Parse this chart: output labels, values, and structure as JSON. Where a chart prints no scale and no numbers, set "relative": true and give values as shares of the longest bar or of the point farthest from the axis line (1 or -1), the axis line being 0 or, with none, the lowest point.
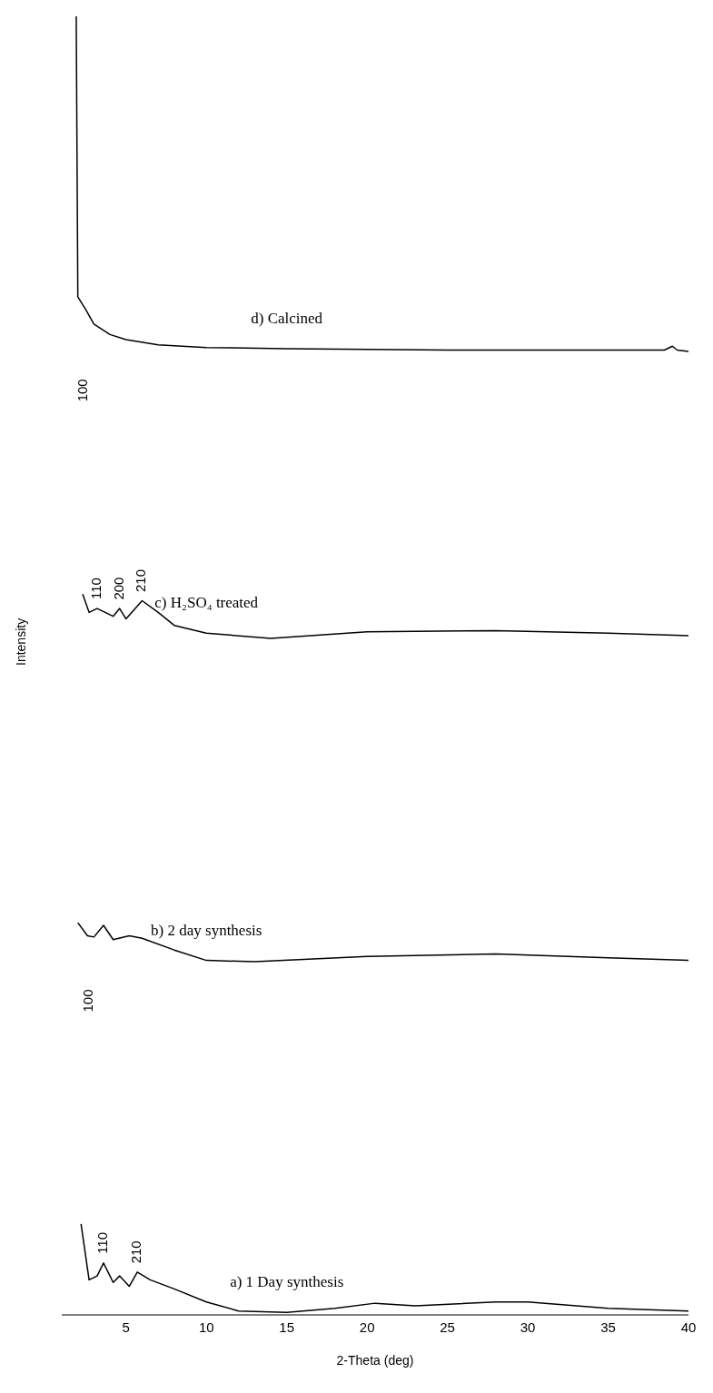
{
  "chart_data": {
    "type": "line",
    "relative": true,
    "xlabel": "2-Theta (deg)",
    "ylabel": "Intensity",
    "xlim": [
      1,
      40
    ],
    "xticks": [
      5,
      10,
      15,
      20,
      25,
      30,
      35,
      40
    ],
    "tick_labels": "x",
    "marker": "none",
    "line_style": "solid",
    "series": [
      {
        "name": "a) 1 Day synthesis",
        "color": "#000000",
        "x": [
          2.2,
          2.7,
          3.2,
          3.6,
          4.2,
          4.6,
          5.2,
          5.7,
          6.5,
          8,
          10,
          12,
          15,
          18,
          20.5,
          23,
          28,
          30,
          35,
          40
        ],
        "values": [
          0.07,
          0.027,
          0.03,
          0.04,
          0.025,
          0.03,
          0.022,
          0.033,
          0.027,
          0.02,
          0.01,
          0.003,
          0.002,
          0.005,
          0.009,
          0.007,
          0.01,
          0.01,
          0.005,
          0.003
        ]
      },
      {
        "name": "b) 2 day synthesis",
        "color": "#000000",
        "x": [
          2,
          2.6,
          3,
          3.6,
          4.2,
          5.2,
          6,
          8,
          10,
          13,
          20,
          28,
          35,
          40
        ],
        "values": [
          0.302,
          0.292,
          0.291,
          0.3,
          0.289,
          0.292,
          0.29,
          0.281,
          0.273,
          0.272,
          0.276,
          0.278,
          0.275,
          0.273
        ]
      },
      {
        "name": "c) H₂SO₄ treated",
        "color": "#000000",
        "x": [
          2.3,
          2.7,
          3.2,
          4.2,
          4.6,
          5,
          6,
          7,
          8,
          10,
          14,
          20,
          28,
          35,
          40
        ],
        "values": [
          0.555,
          0.541,
          0.544,
          0.538,
          0.544,
          0.536,
          0.55,
          0.541,
          0.531,
          0.525,
          0.521,
          0.526,
          0.527,
          0.525,
          0.523
        ]
      },
      {
        "name": "d) Calcined",
        "color": "#000000",
        "x": [
          1.9,
          2,
          2.5,
          3,
          4,
          5,
          7,
          10,
          15,
          25,
          38.5,
          39,
          39.3,
          40
        ],
        "values": [
          1,
          0.784,
          0.774,
          0.763,
          0.755,
          0.751,
          0.747,
          0.745,
          0.744,
          0.743,
          0.743,
          0.746,
          0.743,
          0.742
        ]
      }
    ],
    "annotations": [
      "100",
      {
        "text": "110",
        "x": 3.2,
        "y": 0.544
      },
      {
        "text": "200",
        "x": 4.6,
        "y": 0.544
      },
      {
        "text": "210",
        "x": 6,
        "y": 0.55
      },
      "100",
      {
        "text": "110",
        "x": 3.6,
        "y": 0.04
      },
      {
        "text": "210",
        "x": 5.7,
        "y": 0.033
      }
    ]
  }
}
